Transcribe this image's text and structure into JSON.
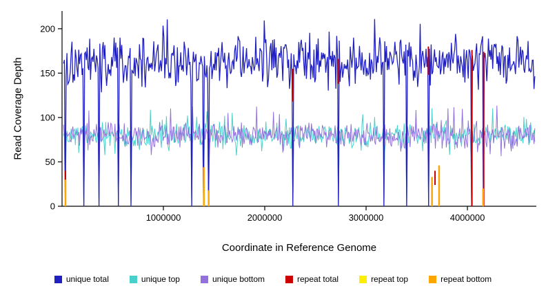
{
  "chart": {
    "ylabel": "Read Coverage Depth",
    "xlabel": "Coordinate in Reference Genome",
    "background": "#ffffff"
  },
  "chart_data": {
    "type": "line",
    "title": "",
    "xlabel": "Coordinate in Reference Genome",
    "ylabel": "Read Coverage Depth",
    "xlim": [
      0,
      4680000
    ],
    "ylim": [
      0,
      220
    ],
    "grid": false,
    "legend_position": "bottom",
    "x_ticks": [
      {
        "value": 1000000,
        "label": "1000000"
      },
      {
        "value": 2000000,
        "label": "2000000"
      },
      {
        "value": 3000000,
        "label": "3000000"
      },
      {
        "value": 4000000,
        "label": "4000000"
      }
    ],
    "y_ticks": [
      {
        "value": 0,
        "label": "0"
      },
      {
        "value": 50,
        "label": "50"
      },
      {
        "value": 100,
        "label": "100"
      },
      {
        "value": 150,
        "label": "150"
      },
      {
        "value": 200,
        "label": "200"
      }
    ],
    "series": [
      {
        "name": "unique top",
        "color": "#48D1CC",
        "render": "noise-line",
        "width": 1,
        "seed": 202,
        "n": 560,
        "x_start": 15000,
        "x_end": 4665000,
        "mean": 80,
        "noise": 8,
        "min": 57,
        "max": 112,
        "zero_dips": [
          34000,
          218000,
          361000,
          559000,
          682000,
          1276000,
          1399000,
          1447000,
          2279000,
          2729000,
          3172000,
          3397000,
          3615000,
          4045000,
          4161000
        ]
      },
      {
        "name": "unique bottom",
        "color": "#9370DB",
        "render": "noise-line",
        "width": 1,
        "seed": 303,
        "n": 560,
        "x_start": 15000,
        "x_end": 4665000,
        "mean": 80,
        "noise": 8,
        "min": 56,
        "max": 116,
        "zero_dips": [
          34000,
          218000,
          361000,
          559000,
          682000,
          1276000,
          1399000,
          1447000,
          2279000,
          2729000,
          3172000,
          3397000,
          3615000,
          4045000,
          4161000
        ]
      },
      {
        "name": "unique total",
        "color": "#2020C0",
        "render": "noise-line",
        "width": 1.3,
        "seed": 101,
        "n": 560,
        "x_start": 15000,
        "x_end": 4665000,
        "mean": 164,
        "noise": 16,
        "min": 128,
        "max": 216,
        "zero_dips": [
          34000,
          218000,
          361000,
          559000,
          682000,
          1276000,
          1399000,
          1447000,
          2279000,
          2729000,
          3172000,
          3397000,
          3615000,
          4045000,
          4161000
        ]
      },
      {
        "name": "repeat total",
        "color": "#CC0000",
        "render": "spikes",
        "width": 2,
        "spikes": [
          {
            "x": 34000,
            "y0": 14,
            "y1": 40
          },
          {
            "x": 2279000,
            "y0": 118,
            "y1": 155
          },
          {
            "x": 2729000,
            "y0": 138,
            "y1": 166
          },
          {
            "x": 3615000,
            "y0": 148,
            "y1": 180
          },
          {
            "x": 3680000,
            "y0": 24,
            "y1": 40
          },
          {
            "x": 4045000,
            "y0": 0,
            "y1": 176
          },
          {
            "x": 4161000,
            "y0": 0,
            "y1": 174
          }
        ]
      },
      {
        "name": "repeat top",
        "color": "#FFEE00",
        "render": "spikes",
        "width": 2,
        "spikes": [
          {
            "x": 1399000,
            "y0": 0,
            "y1": 9
          },
          {
            "x": 3650000,
            "y0": 0,
            "y1": 12
          }
        ]
      },
      {
        "name": "repeat bottom",
        "color": "#FFA500",
        "render": "spikes",
        "width": 2.5,
        "spikes": [
          {
            "x": 34000,
            "y0": 0,
            "y1": 30
          },
          {
            "x": 1399000,
            "y0": 0,
            "y1": 44
          },
          {
            "x": 1447000,
            "y0": 0,
            "y1": 18
          },
          {
            "x": 3650000,
            "y0": 0,
            "y1": 33
          },
          {
            "x": 3720000,
            "y0": 0,
            "y1": 46
          },
          {
            "x": 4155000,
            "y0": 0,
            "y1": 20
          }
        ]
      }
    ]
  },
  "legend": {
    "items": [
      {
        "label": "unique total",
        "color": "#2020C0"
      },
      {
        "label": "unique top",
        "color": "#48D1CC"
      },
      {
        "label": "unique bottom",
        "color": "#9370DB"
      },
      {
        "label": "repeat total",
        "color": "#CC0000"
      },
      {
        "label": "repeat top",
        "color": "#FFEE00"
      },
      {
        "label": "repeat bottom",
        "color": "#FFA500"
      }
    ]
  }
}
